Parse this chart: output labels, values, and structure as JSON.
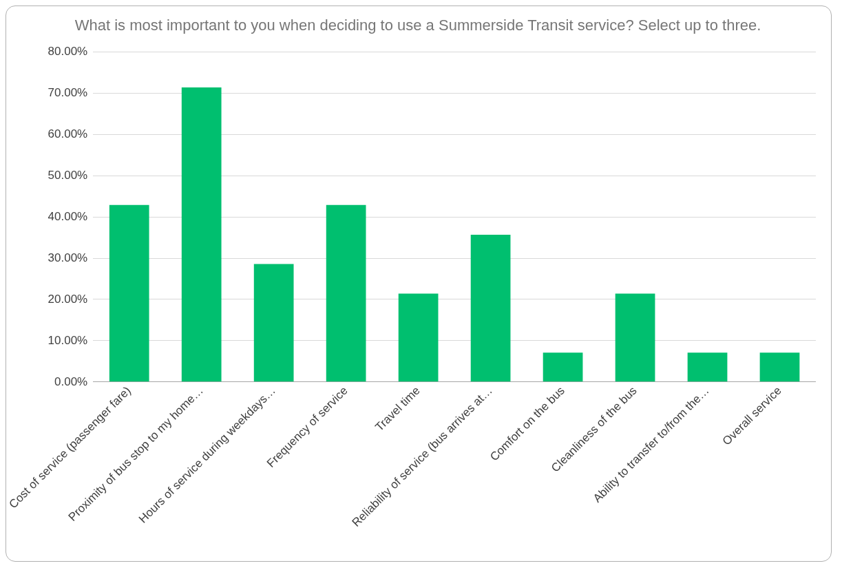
{
  "chart_data": {
    "type": "bar",
    "title": "What is most important to you when deciding to use a Summerside Transit service? Select up to three.",
    "categories": [
      "Cost of service (passenger fare)",
      "Proximity of bus stop to my home…",
      "Hours of service during weekdays…",
      "Frequency of service",
      "Travel time",
      "Reliability of service (bus arrives at…",
      "Comfort on the bus",
      "Cleanliness of the bus",
      "Ability to transfer to/from the…",
      "Overall service"
    ],
    "values": [
      42.9,
      71.4,
      28.6,
      42.9,
      21.4,
      35.7,
      7.1,
      21.4,
      7.1,
      7.1
    ],
    "color": "#00bf6f",
    "ylim": [
      0,
      80
    ],
    "yticks": [
      {
        "value": 0,
        "label": "0.00%"
      },
      {
        "value": 10,
        "label": "10.00%"
      },
      {
        "value": 20,
        "label": "20.00%"
      },
      {
        "value": 30,
        "label": "30.00%"
      },
      {
        "value": 40,
        "label": "40.00%"
      },
      {
        "value": 50,
        "label": "50.00%"
      },
      {
        "value": 60,
        "label": "60.00%"
      },
      {
        "value": 70,
        "label": "70.00%"
      },
      {
        "value": 80,
        "label": "80.00%"
      }
    ],
    "grid": "y"
  }
}
